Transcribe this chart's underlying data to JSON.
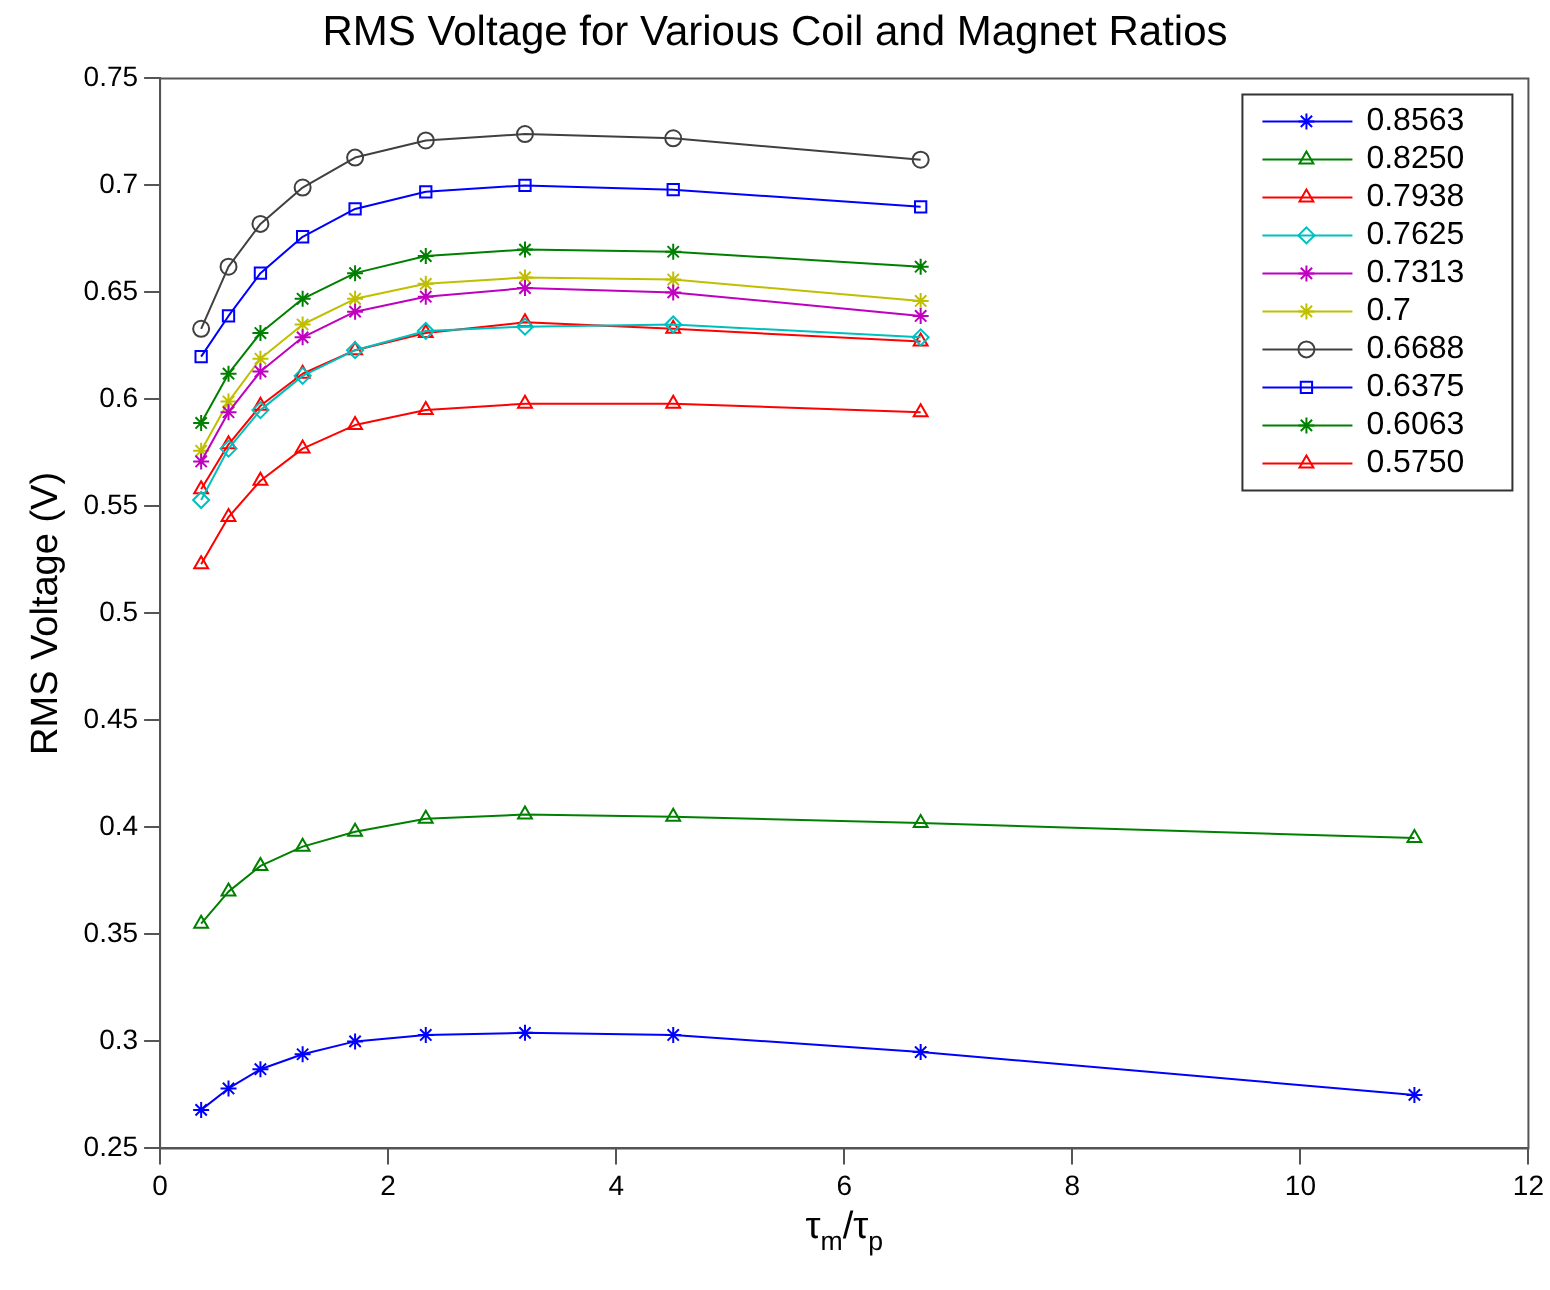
{
  "chart_data": {
    "type": "line",
    "title": "RMS Voltage for Various Coil and Magnet Ratios",
    "xlabel": "τ$_{m}$/τ$_{p}$",
    "ylabel": "RMS Voltage (V)",
    "x": [
      0.36,
      0.6,
      0.88,
      1.25,
      1.71,
      2.33,
      3.2,
      4.5,
      6.67,
      11
    ],
    "xlim": [
      0,
      12
    ],
    "xticks": [
      0,
      2,
      4,
      6,
      8,
      10,
      12
    ],
    "ylim": [
      0.25,
      0.75
    ],
    "yticks": [
      0.25,
      0.3,
      0.35,
      0.4,
      0.45,
      0.5,
      0.55,
      0.6,
      0.65,
      0.7,
      0.75
    ],
    "grid": false,
    "legend": "top right",
    "line_style": "solid",
    "series": [
      {
        "name": "0.8563",
        "color": "#0000ff",
        "marker": "cross",
        "values": [
          0.268,
          0.278,
          0.287,
          0.294,
          0.3,
          0.303,
          0.304,
          0.303,
          0.295,
          0.275
        ]
      },
      {
        "name": "0.8250",
        "color": "#008000",
        "marker": "triangle",
        "values": [
          0.355,
          0.37,
          0.382,
          0.391,
          0.398,
          0.404,
          0.406,
          0.405,
          0.402,
          0.395
        ]
      },
      {
        "name": "0.7938",
        "color": "#ff0000",
        "marker": "triangle",
        "values": [
          0.523,
          0.545,
          0.562,
          0.577,
          0.588,
          0.595,
          0.598,
          0.598,
          0.594,
          null
        ]
      },
      {
        "name": "0.7625",
        "color": "#00bfbf",
        "marker": "diamond",
        "values": [
          0.553,
          0.577,
          0.595,
          0.611,
          0.623,
          0.632,
          0.634,
          0.635,
          0.629,
          null
        ]
      },
      {
        "name": "0.7313",
        "color": "#bf00bf",
        "marker": "cross",
        "values": [
          0.571,
          0.594,
          0.613,
          0.629,
          0.641,
          0.648,
          0.652,
          0.65,
          0.639,
          null
        ]
      },
      {
        "name": "0.7",
        "color": "#bfbf00",
        "marker": "cross",
        "values": [
          0.576,
          0.599,
          0.619,
          0.635,
          0.647,
          0.654,
          0.657,
          0.656,
          0.646,
          null
        ]
      },
      {
        "name": "0.6688",
        "color": "#404040",
        "marker": "circle",
        "values": [
          0.633,
          0.662,
          0.682,
          0.699,
          0.713,
          0.721,
          0.724,
          0.722,
          0.712,
          null
        ]
      },
      {
        "name": "0.6375",
        "color": "#0000ff",
        "marker": "square",
        "values": [
          0.62,
          0.639,
          0.659,
          0.676,
          0.689,
          0.697,
          0.7,
          0.698,
          0.69,
          null
        ]
      },
      {
        "name": "0.6063",
        "color": "#008000",
        "marker": "cross",
        "values": [
          0.589,
          0.612,
          0.631,
          0.647,
          0.659,
          0.667,
          0.67,
          0.669,
          0.662,
          null
        ]
      },
      {
        "name": "0.5750",
        "color": "#ff0000",
        "marker": "triangle",
        "values": [
          0.558,
          0.579,
          0.597,
          0.612,
          0.623,
          0.631,
          0.636,
          0.633,
          0.627,
          null
        ]
      }
    ]
  }
}
